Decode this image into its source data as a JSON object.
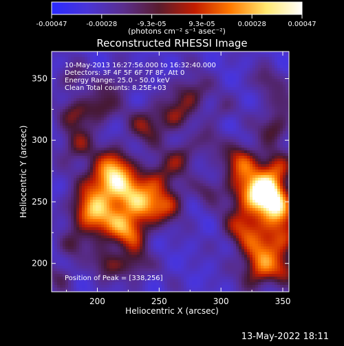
{
  "colorbar": {
    "tick_labels": [
      "-0.00047",
      "-0.00028",
      "-9.3e-05",
      "9.3e-05",
      "0.00028",
      "0.00047"
    ],
    "unit_label": "(photons cm⁻² s⁻¹ asec⁻²)",
    "colors": [
      "#2a2aff",
      "#4a35d8",
      "#5a2e8e",
      "#5a1c2e",
      "#c21c00",
      "#ff7a00",
      "#ffe870",
      "#ffffff"
    ]
  },
  "plot": {
    "title": "Reconstructed RHESSI Image",
    "xlabel": "Heliocentric X (arcsec)",
    "ylabel": "Heliocentric Y (arcsec)",
    "x_ticks": [
      "200",
      "250",
      "300",
      "350"
    ],
    "y_ticks": [
      "200",
      "250",
      "300",
      "350"
    ],
    "xlim": [
      163,
      355
    ],
    "ylim": [
      177,
      372
    ],
    "info_lines": [
      "10-May-2013 16:27:56.000 to 16:32:40.000",
      "Detectors: 3F 4F 5F 6F 7F 8F, Att 0",
      "Energy Range: 25.0 - 50.0 keV",
      "Clean     Total counts: 8.25E+03"
    ],
    "peak_text": "Position of Peak = [338,256]",
    "peak": [
      338,
      256
    ]
  },
  "footer": {
    "timestamp": "13-May-2022 18:11"
  }
}
